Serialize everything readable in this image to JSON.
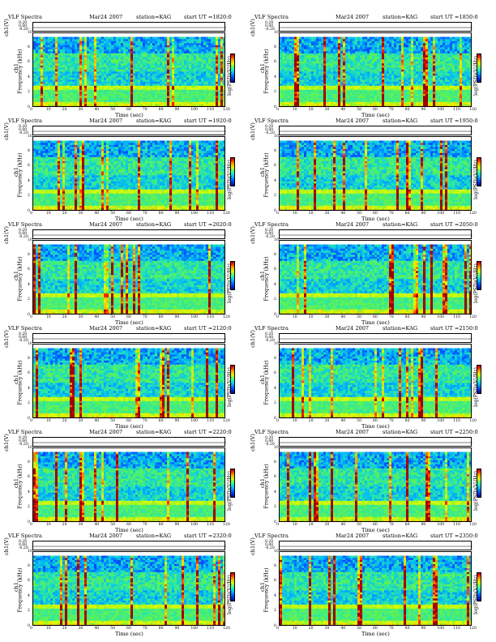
{
  "chart_data": [
    {
      "type": "heatmap",
      "title": "VLF Spectra",
      "date": "Mar24 2007",
      "station": "station=KAG",
      "start": "start  UT =1820:0",
      "xlabel": "Time (sec)",
      "ylabel_top": "ch1(V)",
      "ylabel_main": "Frequency (kHz)",
      "ylabel_main_ch": "ch1",
      "cbar_label": "log(PSD)(V²/Hz)",
      "xlim": [
        0,
        120
      ],
      "ylim": [
        0,
        10
      ],
      "x_ticks": [
        0,
        10,
        20,
        30,
        40,
        50,
        60,
        70,
        80,
        90,
        100,
        110,
        120
      ],
      "y_ticks": [
        0,
        2,
        4,
        6,
        8,
        10
      ],
      "top_ticks": [
        "0.20",
        "0.00",
        "-0.20"
      ]
    },
    {
      "type": "heatmap",
      "title": "VLF Spectra",
      "date": "Mar24 2007",
      "station": "station=KAG",
      "start": "start  UT =1850:0",
      "xlabel": "Time (sec)",
      "ylabel_top": "ch1(V)",
      "ylabel_main": "Frequency (kHz)",
      "ylabel_main_ch": "ch1",
      "cbar_label": "log(PSD)(V²/Hz)",
      "xlim": [
        0,
        120
      ],
      "ylim": [
        0,
        10
      ],
      "x_ticks": [
        0,
        10,
        20,
        30,
        40,
        50,
        60,
        70,
        80,
        90,
        100,
        110,
        120
      ],
      "y_ticks": [
        0,
        2,
        4,
        6,
        8,
        10
      ],
      "top_ticks": [
        "0.20",
        "0.00",
        "-0.20"
      ]
    },
    {
      "type": "heatmap",
      "title": "VLF Spectra",
      "date": "Mar24 2007",
      "station": "station=KAG",
      "start": "start  UT =1920:0",
      "xlabel": "Time (sec)",
      "ylabel_top": "ch1(V)",
      "ylabel_main": "Frequency (kHz)",
      "ylabel_main_ch": "ch1",
      "cbar_label": "log(PSD)(V²/Hz)",
      "xlim": [
        0,
        120
      ],
      "ylim": [
        0,
        10
      ],
      "x_ticks": [
        0,
        10,
        20,
        30,
        40,
        50,
        60,
        70,
        80,
        90,
        100,
        110,
        120
      ],
      "y_ticks": [
        0,
        2,
        4,
        6,
        8,
        10
      ],
      "top_ticks": [
        "0.20",
        "0.00",
        "-0.20"
      ]
    },
    {
      "type": "heatmap",
      "title": "VLF Spectra",
      "date": "Mar24 2007",
      "station": "station=KAG",
      "start": "start  UT =1950:0",
      "xlabel": "Time (sec)",
      "ylabel_top": "ch1(V)",
      "ylabel_main": "Frequency (kHz)",
      "ylabel_main_ch": "ch1",
      "cbar_label": "log(PSD)(V²/Hz)",
      "xlim": [
        0,
        120
      ],
      "ylim": [
        0,
        10
      ],
      "x_ticks": [
        0,
        10,
        20,
        30,
        40,
        50,
        60,
        70,
        80,
        90,
        100,
        110,
        120
      ],
      "y_ticks": [
        0,
        2,
        4,
        6,
        8,
        10
      ],
      "top_ticks": [
        "0.20",
        "0.00",
        "-0.20"
      ]
    },
    {
      "type": "heatmap",
      "title": "VLF Spectra",
      "date": "Mar24 2007",
      "station": "station=KAG",
      "start": "start  UT =2020:0",
      "xlabel": "Time (sec)",
      "ylabel_top": "ch1(V)",
      "ylabel_main": "Frequency (kHz)",
      "ylabel_main_ch": "ch1",
      "cbar_label": "log(PSD)(V²/Hz)",
      "xlim": [
        0,
        120
      ],
      "ylim": [
        0,
        10
      ],
      "x_ticks": [
        0,
        10,
        20,
        30,
        40,
        50,
        60,
        70,
        80,
        90,
        100,
        110,
        120
      ],
      "y_ticks": [
        0,
        2,
        4,
        6,
        8,
        10
      ],
      "top_ticks": [
        "0.20",
        "0.00",
        "-0.20"
      ]
    },
    {
      "type": "heatmap",
      "title": "VLF Spectra",
      "date": "Mar24 2007",
      "station": "station=KAG",
      "start": "start  UT =2050:0",
      "xlabel": "Time (sec)",
      "ylabel_top": "ch1(V)",
      "ylabel_main": "Frequency (kHz)",
      "ylabel_main_ch": "ch1",
      "cbar_label": "log(PSD)(V²/Hz)",
      "xlim": [
        0,
        120
      ],
      "ylim": [
        0,
        10
      ],
      "x_ticks": [
        0,
        10,
        20,
        30,
        40,
        50,
        60,
        70,
        80,
        90,
        100,
        110,
        120
      ],
      "y_ticks": [
        0,
        2,
        4,
        6,
        8,
        10
      ],
      "top_ticks": [
        "0.20",
        "0.00",
        "-0.20"
      ]
    },
    {
      "type": "heatmap",
      "title": "VLF Spectra",
      "date": "Mar24 2007",
      "station": "station=KAG",
      "start": "start  UT =2120:0",
      "xlabel": "Time (sec)",
      "ylabel_top": "ch1(V)",
      "ylabel_main": "Frequency (kHz)",
      "ylabel_main_ch": "ch1",
      "cbar_label": "log(PSD)(V²/Hz)",
      "xlim": [
        0,
        120
      ],
      "ylim": [
        0,
        10
      ],
      "x_ticks": [
        0,
        10,
        20,
        30,
        40,
        50,
        60,
        70,
        80,
        90,
        100,
        110,
        120
      ],
      "y_ticks": [
        0,
        2,
        4,
        6,
        8,
        10
      ],
      "top_ticks": [
        "0.20",
        "0.00",
        "-0.20"
      ]
    },
    {
      "type": "heatmap",
      "title": "VLF Spectra",
      "date": "Mar24 2007",
      "station": "station=KAG",
      "start": "start  UT =2150:0",
      "xlabel": "Time (sec)",
      "ylabel_top": "ch1(V)",
      "ylabel_main": "Frequency (kHz)",
      "ylabel_main_ch": "ch1",
      "cbar_label": "log(PSD)(V²/Hz)",
      "xlim": [
        0,
        120
      ],
      "ylim": [
        0,
        10
      ],
      "x_ticks": [
        0,
        10,
        20,
        30,
        40,
        50,
        60,
        70,
        80,
        90,
        100,
        110,
        120
      ],
      "y_ticks": [
        0,
        2,
        4,
        6,
        8,
        10
      ],
      "top_ticks": [
        "0.20",
        "0.00",
        "-0.20"
      ]
    },
    {
      "type": "heatmap",
      "title": "VLF Spectra",
      "date": "Mar24 2007",
      "station": "station=KAG",
      "start": "start  UT =2220:0",
      "xlabel": "Time (sec)",
      "ylabel_top": "ch1(V)",
      "ylabel_main": "Frequency (kHz)",
      "ylabel_main_ch": "ch1",
      "cbar_label": "log(PSD)(V²/Hz)",
      "xlim": [
        0,
        120
      ],
      "ylim": [
        0,
        10
      ],
      "x_ticks": [
        0,
        10,
        20,
        30,
        40,
        50,
        60,
        70,
        80,
        90,
        100,
        110,
        120
      ],
      "y_ticks": [
        0,
        2,
        4,
        6,
        8,
        10
      ],
      "top_ticks": [
        "0.20",
        "0.00",
        "-0.20"
      ]
    },
    {
      "type": "heatmap",
      "title": "VLF Spectra",
      "date": "Mar24 2007",
      "station": "station=KAG",
      "start": "start  UT =2250:0",
      "xlabel": "Time (sec)",
      "ylabel_top": "ch1(V)",
      "ylabel_main": "Frequency (kHz)",
      "ylabel_main_ch": "ch1",
      "cbar_label": "log(PSD)(V²/Hz)",
      "xlim": [
        0,
        120
      ],
      "ylim": [
        0,
        10
      ],
      "x_ticks": [
        0,
        10,
        20,
        30,
        40,
        50,
        60,
        70,
        80,
        90,
        100,
        110,
        120
      ],
      "y_ticks": [
        0,
        2,
        4,
        6,
        8,
        10
      ],
      "top_ticks": [
        "0.20",
        "0.00",
        "-0.20"
      ]
    },
    {
      "type": "heatmap",
      "title": "VLF Spectra",
      "date": "Mar24 2007",
      "station": "station=KAG",
      "start": "start  UT =2320:0",
      "xlabel": "Time (sec)",
      "ylabel_top": "ch1(V)",
      "ylabel_main": "Frequency (kHz)",
      "ylabel_main_ch": "ch1",
      "cbar_label": "log(PSD)(V²/Hz)",
      "xlim": [
        0,
        120
      ],
      "ylim": [
        0,
        10
      ],
      "x_ticks": [
        0,
        10,
        20,
        30,
        40,
        50,
        60,
        70,
        80,
        90,
        100,
        110,
        120
      ],
      "y_ticks": [
        0,
        2,
        4,
        6,
        8,
        10
      ],
      "top_ticks": [
        "0.20",
        "0.00",
        "-0.20"
      ]
    },
    {
      "type": "heatmap",
      "title": "VLF Spectra",
      "date": "Mar24 2007",
      "station": "station=KAG",
      "start": "start  UT =2350:0",
      "xlabel": "Time (sec)",
      "ylabel_top": "ch1(V)",
      "ylabel_main": "Frequency (kHz)",
      "ylabel_main_ch": "ch1",
      "cbar_label": "log(PSD)(V²/Hz)",
      "xlim": [
        0,
        120
      ],
      "ylim": [
        0,
        10
      ],
      "x_ticks": [
        0,
        10,
        20,
        30,
        40,
        50,
        60,
        70,
        80,
        90,
        100,
        110,
        120
      ],
      "y_ticks": [
        0,
        2,
        4,
        6,
        8,
        10
      ],
      "top_ticks": [
        "0.20",
        "0.00",
        "-0.20"
      ]
    }
  ]
}
